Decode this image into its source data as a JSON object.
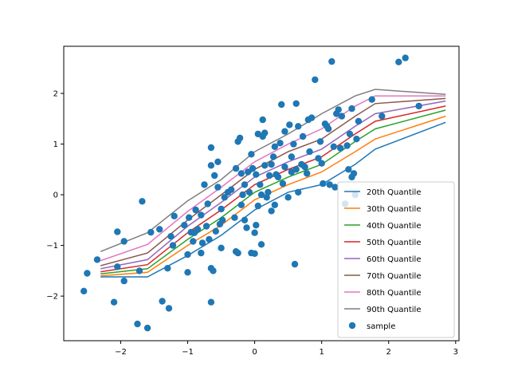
{
  "chart_data": {
    "type": "line",
    "title": "",
    "xlabel": "",
    "ylabel": "",
    "xlim": [
      -2.85,
      3.05
    ],
    "ylim": [
      -2.88,
      2.93
    ],
    "xticks": [
      -2,
      -1,
      0,
      1,
      2,
      3
    ],
    "yticks": [
      -2,
      -1,
      0,
      1,
      2
    ],
    "grid": false,
    "legend_position": "lower-right",
    "x": [
      -2.3,
      -1.6,
      -1.0,
      -0.5,
      0.0,
      0.5,
      1.0,
      1.5,
      1.8,
      2.85
    ],
    "series": [
      {
        "name": "20th Quantile",
        "color": "#1f77b4",
        "values": [
          -1.62,
          -1.62,
          -1.2,
          -0.8,
          -0.3,
          0.05,
          0.2,
          0.6,
          0.9,
          1.43
        ]
      },
      {
        "name": "30th Quantile",
        "color": "#ff7f0e",
        "values": [
          -1.6,
          -1.53,
          -1.0,
          -0.6,
          -0.1,
          0.2,
          0.45,
          0.85,
          1.1,
          1.55
        ]
      },
      {
        "name": "40th Quantile",
        "color": "#2ca02c",
        "values": [
          -1.56,
          -1.46,
          -0.88,
          -0.45,
          0.05,
          0.35,
          0.6,
          1.05,
          1.3,
          1.67
        ]
      },
      {
        "name": "50th Quantile",
        "color": "#d62728",
        "values": [
          -1.52,
          -1.38,
          -0.75,
          -0.3,
          0.2,
          0.5,
          0.75,
          1.2,
          1.45,
          1.75
        ]
      },
      {
        "name": "60th Quantile",
        "color": "#9467bd",
        "values": [
          -1.46,
          -1.28,
          -0.62,
          -0.15,
          0.35,
          0.65,
          0.9,
          1.35,
          1.6,
          1.85
        ]
      },
      {
        "name": "70th Quantile",
        "color": "#8c564b",
        "values": [
          -1.4,
          -1.15,
          -0.5,
          0.0,
          0.5,
          0.85,
          1.1,
          1.55,
          1.8,
          1.9
        ]
      },
      {
        "name": "80th Quantile",
        "color": "#e377c2",
        "values": [
          -1.3,
          -0.98,
          -0.33,
          0.15,
          0.65,
          1.0,
          1.3,
          1.75,
          1.95,
          1.95
        ]
      },
      {
        "name": "90th Quantile",
        "color": "#7f7f7f",
        "values": [
          -1.12,
          -0.75,
          -0.12,
          0.3,
          0.85,
          1.2,
          1.6,
          1.95,
          2.08,
          1.98
        ]
      }
    ],
    "scatter": {
      "name": "sample",
      "color": "#1f77b4",
      "points": [
        [
          -2.55,
          -1.9
        ],
        [
          -2.5,
          -1.55
        ],
        [
          -2.35,
          -1.28
        ],
        [
          -2.1,
          -2.12
        ],
        [
          -2.05,
          -0.73
        ],
        [
          -2.05,
          -1.42
        ],
        [
          -1.95,
          -1.7
        ],
        [
          -1.95,
          -0.92
        ],
        [
          -1.75,
          -2.55
        ],
        [
          -1.72,
          -1.5
        ],
        [
          -1.68,
          -0.13
        ],
        [
          -1.6,
          -2.63
        ],
        [
          -1.55,
          -0.74
        ],
        [
          -1.42,
          -0.68
        ],
        [
          -1.38,
          -2.1
        ],
        [
          -1.3,
          -1.45
        ],
        [
          -1.28,
          -2.24
        ],
        [
          -1.25,
          -0.82
        ],
        [
          -1.22,
          -1.0
        ],
        [
          -1.2,
          -0.42
        ],
        [
          -1.05,
          -0.6
        ],
        [
          -1.0,
          -1.53
        ],
        [
          -1.0,
          -1.18
        ],
        [
          -0.98,
          -0.45
        ],
        [
          -0.95,
          -0.74
        ],
        [
          -0.92,
          -0.92
        ],
        [
          -0.9,
          -0.75
        ],
        [
          -0.88,
          -0.3
        ],
        [
          -0.85,
          -0.68
        ],
        [
          -0.8,
          -0.4
        ],
        [
          -0.8,
          -1.15
        ],
        [
          -0.78,
          -0.95
        ],
        [
          -0.75,
          0.2
        ],
        [
          -0.72,
          -0.62
        ],
        [
          -0.7,
          -0.18
        ],
        [
          -0.68,
          -0.88
        ],
        [
          -0.65,
          0.93
        ],
        [
          -0.65,
          0.58
        ],
        [
          -0.65,
          -2.12
        ],
        [
          -0.65,
          -1.45
        ],
        [
          -0.62,
          -1.5
        ],
        [
          -0.6,
          0.38
        ],
        [
          -0.58,
          -0.72
        ],
        [
          -0.55,
          0.65
        ],
        [
          -0.55,
          0.15
        ],
        [
          -0.52,
          -0.58
        ],
        [
          -0.5,
          -1.05
        ],
        [
          -0.5,
          -0.28
        ],
        [
          -0.48,
          -0.5
        ],
        [
          -0.45,
          -0.05
        ],
        [
          -0.4,
          0.05
        ],
        [
          -0.35,
          0.1
        ],
        [
          -0.3,
          -0.45
        ],
        [
          -0.28,
          -1.12
        ],
        [
          -0.28,
          0.52
        ],
        [
          -0.25,
          -1.15
        ],
        [
          -0.25,
          1.05
        ],
        [
          -0.22,
          1.12
        ],
        [
          -0.2,
          0.42
        ],
        [
          -0.2,
          -0.2
        ],
        [
          -0.18,
          0.0
        ],
        [
          -0.15,
          -0.5
        ],
        [
          -0.15,
          0.2
        ],
        [
          -0.12,
          -0.65
        ],
        [
          -0.1,
          0.45
        ],
        [
          -0.08,
          0.05
        ],
        [
          -0.05,
          -1.15
        ],
        [
          -0.05,
          0.8
        ],
        [
          -0.03,
          0.52
        ],
        [
          0.0,
          -0.75
        ],
        [
          0.0,
          -1.16
        ],
        [
          0.02,
          0.4
        ],
        [
          0.02,
          -0.6
        ],
        [
          0.05,
          1.2
        ],
        [
          0.05,
          -0.22
        ],
        [
          0.08,
          0.2
        ],
        [
          0.1,
          -0.98
        ],
        [
          0.1,
          0.0
        ],
        [
          0.12,
          1.15
        ],
        [
          0.12,
          1.48
        ],
        [
          0.15,
          1.22
        ],
        [
          0.15,
          0.58
        ],
        [
          0.18,
          -0.05
        ],
        [
          0.2,
          0.05
        ],
        [
          0.22,
          0.38
        ],
        [
          0.25,
          -0.32
        ],
        [
          0.25,
          0.6
        ],
        [
          0.28,
          0.75
        ],
        [
          0.3,
          -0.2
        ],
        [
          0.3,
          0.95
        ],
        [
          0.32,
          0.4
        ],
        [
          0.35,
          0.35
        ],
        [
          0.38,
          1.02
        ],
        [
          0.4,
          1.78
        ],
        [
          0.42,
          0.22
        ],
        [
          0.45,
          0.55
        ],
        [
          0.45,
          1.25
        ],
        [
          0.5,
          -0.05
        ],
        [
          0.52,
          1.38
        ],
        [
          0.55,
          0.45
        ],
        [
          0.55,
          0.75
        ],
        [
          0.58,
          1.0
        ],
        [
          0.6,
          -1.37
        ],
        [
          0.62,
          1.8
        ],
        [
          0.62,
          0.5
        ],
        [
          0.65,
          0.05
        ],
        [
          0.65,
          1.35
        ],
        [
          0.7,
          0.6
        ],
        [
          0.72,
          1.15
        ],
        [
          0.75,
          0.55
        ],
        [
          0.78,
          0.42
        ],
        [
          0.8,
          1.48
        ],
        [
          0.82,
          0.85
        ],
        [
          0.85,
          1.52
        ],
        [
          0.9,
          2.27
        ],
        [
          0.95,
          0.72
        ],
        [
          0.98,
          1.05
        ],
        [
          1.0,
          0.62
        ],
        [
          1.02,
          0.22
        ],
        [
          1.05,
          1.4
        ],
        [
          1.08,
          1.35
        ],
        [
          1.1,
          1.3
        ],
        [
          1.12,
          0.2
        ],
        [
          1.15,
          2.63
        ],
        [
          1.18,
          0.95
        ],
        [
          1.2,
          0.15
        ],
        [
          1.22,
          1.6
        ],
        [
          1.25,
          1.68
        ],
        [
          1.28,
          0.92
        ],
        [
          1.3,
          1.55
        ],
        [
          1.35,
          -0.18
        ],
        [
          1.38,
          0.97
        ],
        [
          1.4,
          0.5
        ],
        [
          1.42,
          1.2
        ],
        [
          1.45,
          0.35
        ],
        [
          1.45,
          1.7
        ],
        [
          1.48,
          0.42
        ],
        [
          1.5,
          0.0
        ],
        [
          1.52,
          1.1
        ],
        [
          1.55,
          1.45
        ],
        [
          1.75,
          1.88
        ],
        [
          1.9,
          1.55
        ],
        [
          2.15,
          2.62
        ],
        [
          2.25,
          2.7
        ],
        [
          2.45,
          1.75
        ]
      ]
    }
  }
}
